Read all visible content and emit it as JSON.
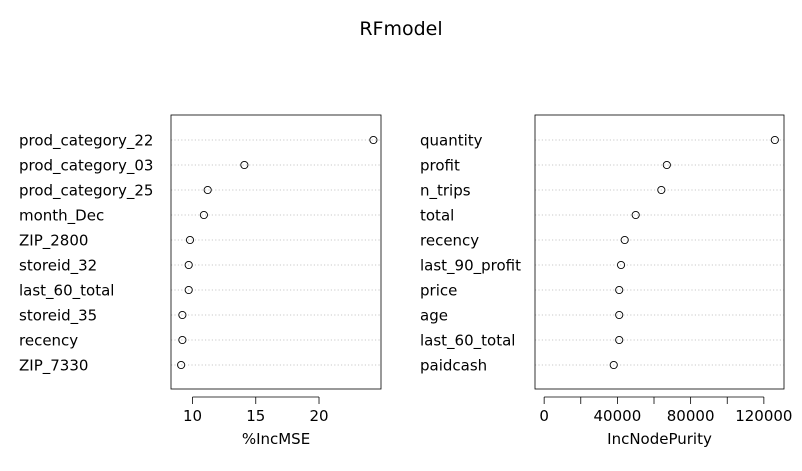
{
  "chart_data": [
    {
      "type": "scatter",
      "title": "RFmodel",
      "panel": "left",
      "xlabel": "%IncMSE",
      "categories": [
        "prod_category_22",
        "prod_category_03",
        "prod_category_25",
        "month_Dec",
        "ZIP_2800",
        "storeid_32",
        "last_60_total",
        "storeid_35",
        "recency",
        "ZIP_7330"
      ],
      "values": [
        24.3,
        14.1,
        11.2,
        10.9,
        9.8,
        9.7,
        9.7,
        9.2,
        9.2,
        9.1
      ],
      "xlim": [
        8.3,
        24.9
      ],
      "xticks": [
        10,
        15,
        20
      ],
      "xtick_labels": [
        "10",
        "15",
        "20"
      ],
      "grid": "dotted horizontal"
    },
    {
      "type": "scatter",
      "panel": "right",
      "xlabel": "IncNodePurity",
      "categories": [
        "quantity",
        "profit",
        "n_trips",
        "total",
        "recency",
        "last_90_profit",
        "price",
        "age",
        "last_60_total",
        "paidcash"
      ],
      "values": [
        126000,
        67000,
        64000,
        50000,
        44000,
        42000,
        41000,
        41000,
        41000,
        38000
      ],
      "xlim": [
        -5000,
        131000
      ],
      "xticks": [
        0,
        20000,
        40000,
        60000,
        80000,
        100000,
        120000
      ],
      "xtick_labels": [
        "0",
        "",
        "40000",
        "",
        "80000",
        "",
        "120000"
      ],
      "grid": "dotted horizontal"
    }
  ]
}
